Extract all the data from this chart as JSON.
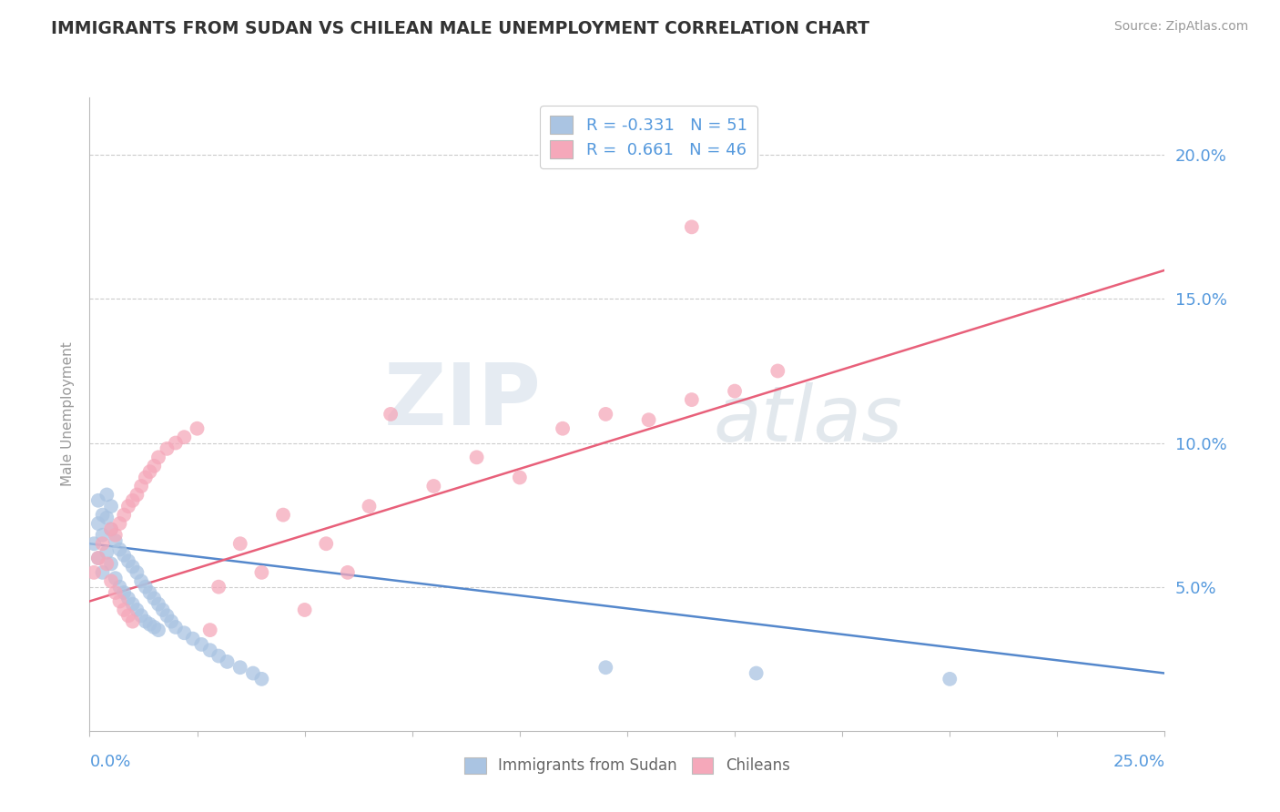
{
  "title": "IMMIGRANTS FROM SUDAN VS CHILEAN MALE UNEMPLOYMENT CORRELATION CHART",
  "source": "Source: ZipAtlas.com",
  "ylabel": "Male Unemployment",
  "right_yticks": [
    0.05,
    0.1,
    0.15,
    0.2
  ],
  "right_yticklabels": [
    "5.0%",
    "10.0%",
    "15.0%",
    "20.0%"
  ],
  "xmin": 0.0,
  "xmax": 0.25,
  "ymin": 0.0,
  "ymax": 0.22,
  "blue_R": -0.331,
  "blue_N": 51,
  "pink_R": 0.661,
  "pink_N": 46,
  "blue_color": "#aac4e2",
  "pink_color": "#f5a8ba",
  "blue_line_color": "#5588cc",
  "pink_line_color": "#e8607a",
  "axis_label_color": "#5599dd",
  "legend_label_blue": "Immigrants from Sudan",
  "legend_label_pink": "Chileans",
  "watermark_zip": "ZIP",
  "watermark_atlas": "atlas",
  "background_color": "#ffffff",
  "grid_color": "#cccccc",
  "blue_trend_x": [
    0.0,
    0.25
  ],
  "blue_trend_y": [
    0.065,
    0.02
  ],
  "pink_trend_x": [
    0.0,
    0.25
  ],
  "pink_trend_y": [
    0.045,
    0.16
  ],
  "blue_scatter_x": [
    0.001,
    0.002,
    0.002,
    0.003,
    0.003,
    0.004,
    0.004,
    0.005,
    0.005,
    0.006,
    0.006,
    0.007,
    0.007,
    0.008,
    0.008,
    0.009,
    0.009,
    0.01,
    0.01,
    0.011,
    0.011,
    0.012,
    0.012,
    0.013,
    0.013,
    0.014,
    0.014,
    0.015,
    0.015,
    0.016,
    0.016,
    0.017,
    0.018,
    0.019,
    0.02,
    0.022,
    0.024,
    0.026,
    0.028,
    0.03,
    0.032,
    0.035,
    0.038,
    0.04,
    0.002,
    0.003,
    0.004,
    0.005,
    0.12,
    0.155,
    0.2
  ],
  "blue_scatter_y": [
    0.065,
    0.072,
    0.06,
    0.068,
    0.055,
    0.074,
    0.062,
    0.07,
    0.058,
    0.066,
    0.053,
    0.063,
    0.05,
    0.061,
    0.048,
    0.059,
    0.046,
    0.057,
    0.044,
    0.055,
    0.042,
    0.052,
    0.04,
    0.05,
    0.038,
    0.048,
    0.037,
    0.046,
    0.036,
    0.044,
    0.035,
    0.042,
    0.04,
    0.038,
    0.036,
    0.034,
    0.032,
    0.03,
    0.028,
    0.026,
    0.024,
    0.022,
    0.02,
    0.018,
    0.08,
    0.075,
    0.082,
    0.078,
    0.022,
    0.02,
    0.018
  ],
  "pink_scatter_x": [
    0.001,
    0.002,
    0.003,
    0.004,
    0.005,
    0.005,
    0.006,
    0.006,
    0.007,
    0.007,
    0.008,
    0.008,
    0.009,
    0.009,
    0.01,
    0.01,
    0.011,
    0.012,
    0.013,
    0.014,
    0.015,
    0.016,
    0.018,
    0.02,
    0.022,
    0.025,
    0.028,
    0.03,
    0.035,
    0.04,
    0.045,
    0.05,
    0.055,
    0.06,
    0.065,
    0.07,
    0.08,
    0.09,
    0.1,
    0.11,
    0.12,
    0.13,
    0.14,
    0.14,
    0.15,
    0.16
  ],
  "pink_scatter_y": [
    0.055,
    0.06,
    0.065,
    0.058,
    0.07,
    0.052,
    0.068,
    0.048,
    0.072,
    0.045,
    0.075,
    0.042,
    0.078,
    0.04,
    0.08,
    0.038,
    0.082,
    0.085,
    0.088,
    0.09,
    0.092,
    0.095,
    0.098,
    0.1,
    0.102,
    0.105,
    0.035,
    0.05,
    0.065,
    0.055,
    0.075,
    0.042,
    0.065,
    0.055,
    0.078,
    0.11,
    0.085,
    0.095,
    0.088,
    0.105,
    0.11,
    0.108,
    0.115,
    0.175,
    0.118,
    0.125
  ]
}
